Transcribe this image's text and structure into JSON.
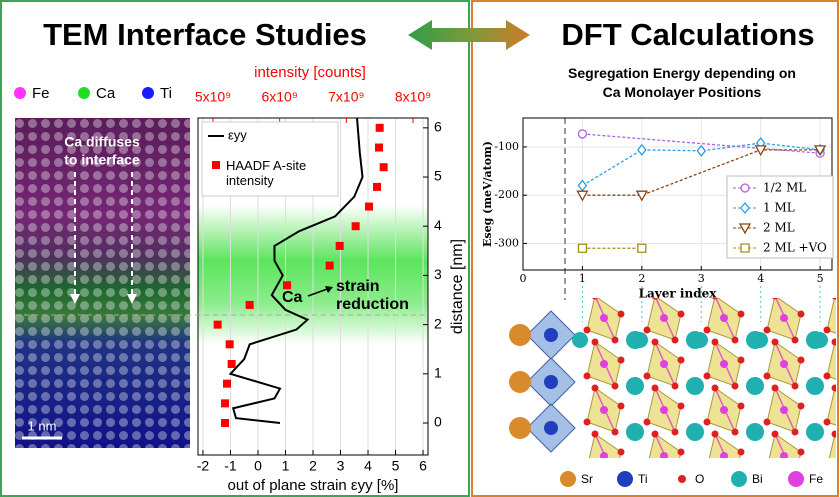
{
  "left": {
    "title": "TEM Interface Studies",
    "legend": [
      {
        "label": "Fe",
        "color": "#ff33ff"
      },
      {
        "label": "Ca",
        "color": "#22dd22"
      },
      {
        "label": "Ti",
        "color": "#1a1aff"
      }
    ],
    "image_annotation": [
      "Ca diffuses",
      "to interface"
    ],
    "scale_bar": "1 nm"
  },
  "right": {
    "title": "DFT Calculations",
    "structure_legend": [
      {
        "label": "Sr",
        "color": "#d98a2b"
      },
      {
        "label": "Ti",
        "color": "#1f3fbf"
      },
      {
        "label": "O",
        "color": "#e02020"
      },
      {
        "label": "Bi",
        "color": "#20b0b0"
      },
      {
        "label": "Fe",
        "color": "#e040e0"
      }
    ]
  },
  "chart_data": [
    {
      "type": "line",
      "xlabel": "out of plane strain εyy [%]",
      "x2label": "intensity [counts]",
      "ylabel": "distance [nm]",
      "xlim": [
        -2.18,
        6.18
      ],
      "xticks": [
        -2,
        -1,
        0,
        1,
        2,
        3,
        4,
        5,
        6
      ],
      "x2lim": [
        4775000000,
        8225000000
      ],
      "x2ticks": [
        {
          "value": 5000000000,
          "label": "5x10⁹"
        },
        {
          "value": 6000000000,
          "label": "6x10⁹"
        },
        {
          "value": 7000000000,
          "label": "7x10⁹"
        },
        {
          "value": 8000000000,
          "label": "8x10⁹"
        }
      ],
      "ylim": [
        -0.65,
        6.2
      ],
      "yticks": [
        0,
        1,
        2,
        3,
        4,
        5,
        6
      ],
      "grid": true,
      "legend": "upper left",
      "series": [
        {
          "name": "εyy",
          "color": "#000000",
          "values": [
            3.6,
            3.7,
            3.8,
            3.5,
            2.8,
            1.5,
            0.6,
            0.6,
            0.9,
            0.5,
            1.0,
            1.8,
            1.4,
            -0.3,
            -0.5,
            -1.0,
            0.8,
            0.6,
            -0.9,
            -0.8,
            0.8
          ],
          "distance": [
            6.2,
            5.5,
            5.0,
            4.6,
            4.2,
            3.9,
            3.6,
            3.3,
            3.0,
            2.6,
            2.3,
            2.1,
            1.9,
            1.6,
            1.3,
            1.0,
            0.7,
            0.5,
            0.3,
            0.1,
            0.0
          ]
        },
        {
          "name": "HAADF A-site intensity",
          "color": "#ff0000",
          "axis": "x2",
          "marker": "square",
          "values": [
            7500000000,
            7490000000,
            7560000000,
            7460000000,
            7340000000,
            7140000000,
            6900000000,
            6750000000,
            6110000000,
            5550000000,
            5070000000,
            5250000000,
            5280000000,
            5210000000,
            5180000000,
            5180000000
          ],
          "distance": [
            6.0,
            5.6,
            5.2,
            4.8,
            4.4,
            4.0,
            3.6,
            3.2,
            2.8,
            2.4,
            2.0,
            1.6,
            1.2,
            0.8,
            0.4,
            0.0
          ]
        }
      ],
      "annotations": [
        "Ca",
        "strain",
        "reduction"
      ]
    },
    {
      "type": "line",
      "title": "Segregation Energy depending on Ca Monolayer Positions",
      "xlabel": "Layer index",
      "ylabel": "Eseg (meV/atom)",
      "xlim": [
        0,
        5.2
      ],
      "xticks": [
        0,
        1,
        2,
        3,
        4,
        5
      ],
      "ylim": [
        -355,
        -40
      ],
      "yticks": [
        -100,
        -200,
        -300
      ],
      "grid": true,
      "legend": "center right",
      "series": [
        {
          "name": "1/2 ML",
          "color": "#b060e0",
          "marker": "circle",
          "x": [
            1,
            5
          ],
          "values": [
            -73,
            -113
          ]
        },
        {
          "name": "1 ML",
          "color": "#2a9ee8",
          "marker": "diamond",
          "x": [
            1,
            2,
            3,
            4,
            5
          ],
          "values": [
            -180,
            -106,
            -108,
            -92,
            -106
          ]
        },
        {
          "name": "2 ML",
          "color": "#8b4513",
          "marker": "triangle-down",
          "x": [
            1,
            2,
            4,
            5
          ],
          "values": [
            -200,
            -200,
            -106,
            -106
          ]
        },
        {
          "name": "2 ML +VO",
          "color": "#a09010",
          "marker": "square",
          "x": [
            1,
            2
          ],
          "values": [
            -310,
            -310
          ]
        }
      ]
    }
  ]
}
